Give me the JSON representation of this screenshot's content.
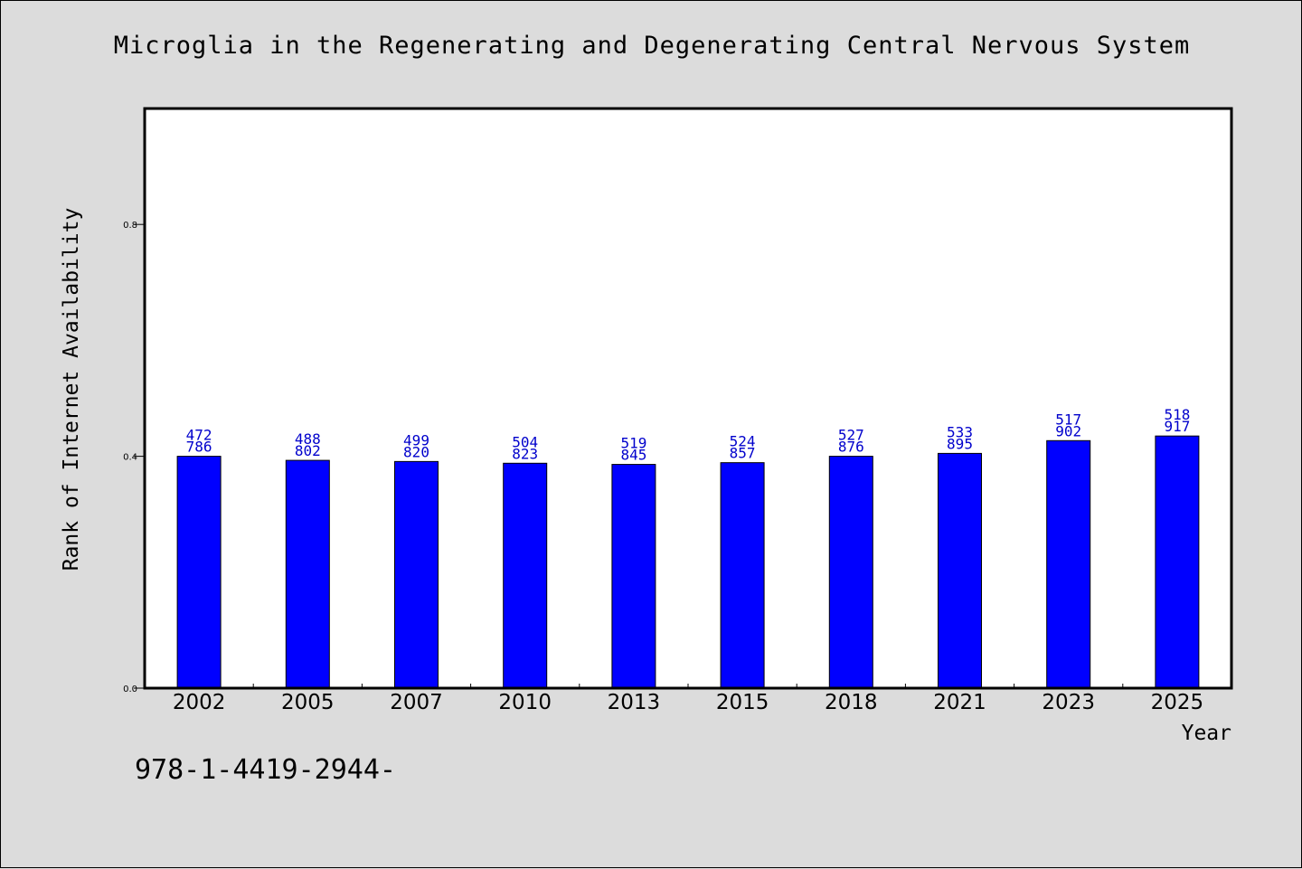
{
  "colors": {
    "background": "#dcdcdc",
    "plot_background": "#ffffff",
    "bar": "#0000ff",
    "data_label": "#0000cc",
    "axis": "#000000"
  },
  "footer": {
    "code": "978-1-4419-2944-"
  },
  "chart_data": {
    "type": "bar",
    "title": "Microglia in the Regenerating and Degenerating Central Nervous System",
    "xlabel": "Year",
    "ylabel": "Rank of Internet Availability",
    "categories": [
      "2002",
      "2005",
      "2007",
      "2010",
      "2013",
      "2015",
      "2018",
      "2021",
      "2023",
      "2025"
    ],
    "values": [
      0.4,
      0.393,
      0.391,
      0.388,
      0.386,
      0.389,
      0.4,
      0.405,
      0.427,
      0.435
    ],
    "label_top": [
      "472",
      "488",
      "499",
      "504",
      "519",
      "524",
      "527",
      "533",
      "517",
      "518"
    ],
    "label_bottom": [
      "786",
      "802",
      "820",
      "823",
      "845",
      "857",
      "876",
      "895",
      "902",
      "917"
    ],
    "ylim": [
      0,
      1.0
    ],
    "yticks": [
      0.0,
      0.4,
      0.8
    ],
    "ytick_labels": [
      "0.0",
      "0.4",
      "0.8"
    ],
    "grid": false,
    "legend": "none"
  }
}
